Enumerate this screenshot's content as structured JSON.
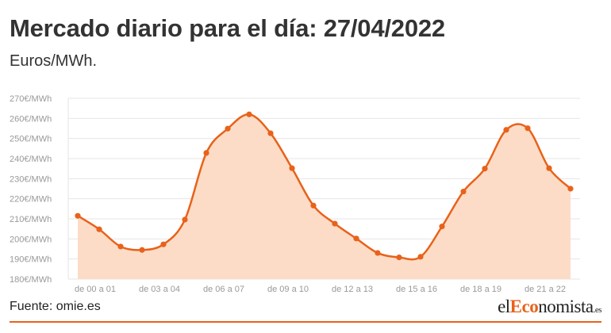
{
  "header": {
    "title": "Mercado diario para el día: 27/04/2022",
    "subtitle": "Euros/MWh."
  },
  "footer": {
    "source": "Fuente: omie.es",
    "brand_prefix": "el",
    "brand_highlight": "Eco",
    "brand_rest": "nomista",
    "brand_suffix": ".es"
  },
  "colors": {
    "line": "#e8621b",
    "area": "#fcdcc6",
    "accent": "#e8621b"
  },
  "chart_data": {
    "type": "area",
    "title": "Mercado diario para el día: 27/04/2022",
    "subtitle": "Euros/MWh.",
    "ylim": [
      180,
      270
    ],
    "yticks": [
      "180€/MWh",
      "190€/MWh",
      "200€/MWh",
      "210€/MWh",
      "220€/MWh",
      "230€/MWh",
      "240€/MWh",
      "250€/MWh",
      "260€/MWh",
      "270€/MWh"
    ],
    "ytick_values": [
      180,
      190,
      200,
      210,
      220,
      230,
      240,
      250,
      260,
      270
    ],
    "xticks": [
      "de 00 a 01",
      "de 03 a 04",
      "de 06 a 07",
      "de 09 a 10",
      "de 12 a 13",
      "de 15 a 16",
      "de 18 a 19",
      "de 21 a 22"
    ],
    "xtick_indices": [
      0,
      3,
      6,
      9,
      12,
      15,
      18,
      21
    ],
    "x": [
      0,
      1,
      2,
      3,
      4,
      5,
      6,
      7,
      8,
      9,
      10,
      11,
      12,
      13,
      14,
      15,
      16,
      17,
      18,
      19,
      20,
      21,
      22,
      23
    ],
    "series": [
      {
        "values": [
          211.5,
          204.8,
          196.2,
          194.5,
          197.3,
          209.6,
          242.8,
          254.9,
          262.0,
          252.6,
          235.2,
          216.6,
          207.6,
          200.2,
          193.0,
          190.8,
          191.1,
          206.2,
          223.6,
          235.0,
          254.3,
          255.1,
          235.2,
          225.0
        ]
      }
    ],
    "grid": true,
    "legend": "none"
  }
}
